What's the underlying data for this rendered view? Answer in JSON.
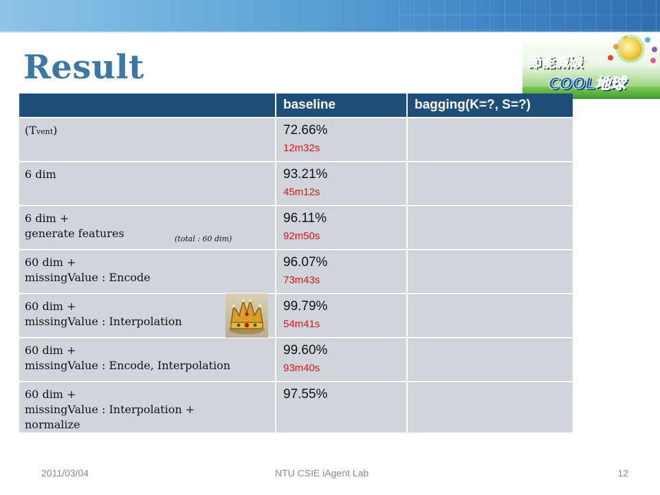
{
  "slide": {
    "title": "Result",
    "logo": {
      "line1": "節能減碳",
      "line2": "COOL地球"
    }
  },
  "table": {
    "headers": [
      "",
      "baseline",
      "bagging(K=?, S=?)"
    ],
    "rows": [
      {
        "cond_main": "(T",
        "cond_sub": "vent",
        "cond_close": ")",
        "accuracy": "72.66%",
        "time": "12m32s",
        "bagging": ""
      },
      {
        "condition": "6 dim",
        "accuracy": "93.21%",
        "time": "45m12s",
        "bagging": ""
      },
      {
        "condition_line1": "6 dim +",
        "condition_line2": "generate features",
        "note": "(total : 60 dim)",
        "accuracy": "96.11%",
        "time": "92m50s",
        "bagging": ""
      },
      {
        "condition_line1": "60 dim +",
        "condition_line2": "missingValue : Encode",
        "accuracy": "96.07%",
        "time": "73m43s",
        "bagging": ""
      },
      {
        "condition_line1": "60 dim +",
        "condition_line2": "missingValue : Interpolation",
        "accuracy": "99.79%",
        "time": "54m41s",
        "bagging": ""
      },
      {
        "condition_line1": "60 dim +",
        "condition_line2": "missingValue : Encode, Interpolation",
        "accuracy": "99.60%",
        "time": "93m40s",
        "bagging": ""
      },
      {
        "condition_line1": "60 dim +",
        "condition_line2": "missingValue : Interpolation +",
        "condition_line3": "normalize",
        "accuracy": "97.55%",
        "bagging": ""
      }
    ]
  },
  "footer": {
    "date": "2011/03/04",
    "lab": "NTU CSIE iAgent Lab",
    "page": "12"
  },
  "colors": {
    "header_bg": "#1f4e79",
    "row_bg": "#d0d5dc",
    "time_red": "#e0140f",
    "title_blue": "#3a78a8"
  },
  "icons": [
    "crown-image",
    "energy-saving-logo"
  ]
}
